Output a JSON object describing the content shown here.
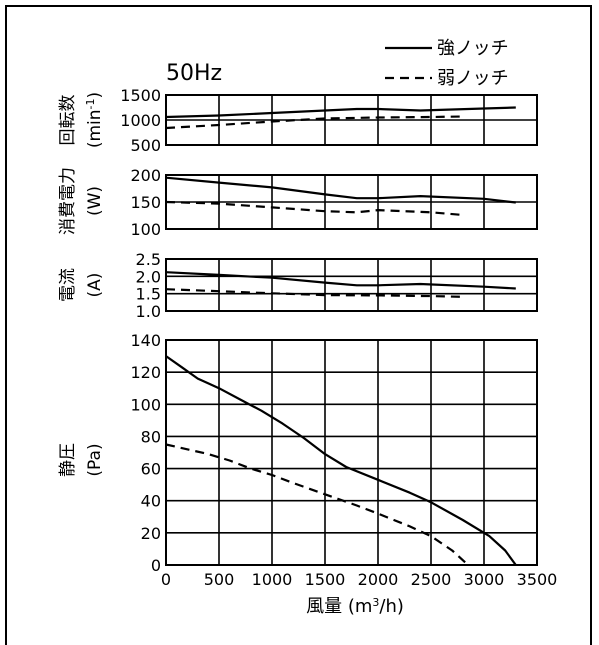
{
  "chart_data": {
    "type": "line",
    "annotation": "50Hz",
    "legend": {
      "placement": "top-right",
      "entries": [
        {
          "label": "強ノッチ",
          "style": "solid"
        },
        {
          "label": "弱ノッチ",
          "style": "dashed"
        }
      ]
    },
    "xlabel_main": "風量 (m",
    "xlabel_sup": "3",
    "xlabel_tail": "/h)",
    "x_range": [
      0,
      3500
    ],
    "x_ticks": [
      "0",
      "500",
      "1000",
      "1500",
      "2000",
      "2500",
      "3000",
      "3500"
    ],
    "grid": true,
    "panels": [
      {
        "id": "speed",
        "ylabel_main": "回転数",
        "ylabel_unit_main": "(min",
        "ylabel_unit_sup": "-1",
        "ylabel_unit_tail": ")",
        "y_range": [
          500,
          1500
        ],
        "y_ticks": [
          "1500",
          "1000",
          "500"
        ],
        "series": [
          {
            "style": "solid",
            "x": [
              0,
              500,
              1000,
              1500,
              1800,
              2000,
              2400,
              3000,
              3300
            ],
            "y": [
              1060,
              1090,
              1140,
              1190,
              1220,
              1220,
              1190,
              1230,
              1250
            ]
          },
          {
            "style": "dashed",
            "x": [
              0,
              500,
              1000,
              1500,
              2000,
              2500,
              2800
            ],
            "y": [
              840,
              900,
              970,
              1030,
              1050,
              1060,
              1070
            ]
          }
        ]
      },
      {
        "id": "power",
        "ylabel_main": "消費電力",
        "ylabel_unit_main": "(W)",
        "y_range": [
          100,
          200
        ],
        "y_ticks": [
          "200",
          "150",
          "100"
        ],
        "series": [
          {
            "style": "solid",
            "x": [
              0,
              500,
              1000,
              1500,
              1800,
              2000,
              2400,
              3000,
              3300
            ],
            "y": [
              195,
              186,
              177,
              164,
              157,
              157,
              161,
              156,
              149
            ]
          },
          {
            "style": "dashed",
            "x": [
              0,
              500,
              1000,
              1500,
              1800,
              2000,
              2500,
              2800
            ],
            "y": [
              150,
              147,
              140,
              133,
              131,
              135,
              131,
              126
            ]
          }
        ]
      },
      {
        "id": "current",
        "ylabel_main": "電流",
        "ylabel_unit_main": "(A)",
        "y_range": [
          1.0,
          2.5
        ],
        "y_ticks": [
          "2.5",
          "2.0",
          "1.5",
          "1.0"
        ],
        "series": [
          {
            "style": "solid",
            "x": [
              0,
              500,
              1000,
              1500,
              1800,
              2000,
              2400,
              3000,
              3300
            ],
            "y": [
              2.12,
              2.04,
              1.96,
              1.82,
              1.74,
              1.74,
              1.78,
              1.7,
              1.65
            ]
          },
          {
            "style": "dashed",
            "x": [
              0,
              500,
              1000,
              1500,
              2000,
              2500,
              2800
            ],
            "y": [
              1.63,
              1.57,
              1.51,
              1.46,
              1.45,
              1.43,
              1.41
            ]
          }
        ]
      },
      {
        "id": "pressure",
        "ylabel_main": "静圧",
        "ylabel_unit_main": "(Pa)",
        "y_range": [
          0,
          140
        ],
        "y_ticks": [
          "140",
          "120",
          "100",
          "80",
          "60",
          "40",
          "20",
          "0"
        ],
        "series": [
          {
            "style": "solid",
            "x": [
              0,
              150,
              300,
              500,
              700,
              900,
              1100,
              1300,
              1500,
              1700,
              2000,
              2300,
              2500,
              2800,
              3050,
              3200,
              3300
            ],
            "y": [
              130,
              123,
              116,
              110,
              103,
              96,
              88,
              79,
              69,
              61,
              53,
              45,
              39,
              28,
              18,
              9,
              0
            ]
          },
          {
            "style": "dashed",
            "x": [
              0,
              200,
              400,
              600,
              800,
              1000,
              1200,
              1500,
              1800,
              2000,
              2300,
              2500,
              2700,
              2850
            ],
            "y": [
              75,
              72,
              69,
              65,
              60,
              56,
              51,
              44,
              37,
              32,
              24,
              18,
              9,
              0
            ]
          }
        ]
      }
    ]
  }
}
